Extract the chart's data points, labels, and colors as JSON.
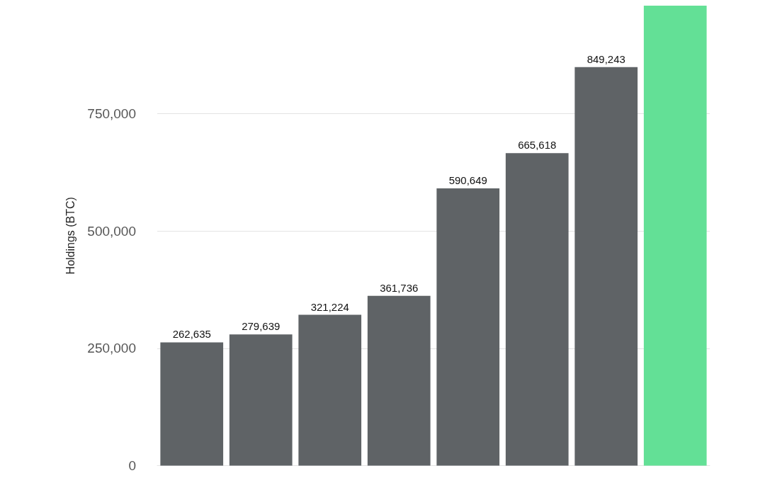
{
  "chart_data": {
    "type": "bar",
    "ylabel": "Holdings (BTC)",
    "categories": [
      null,
      null,
      null,
      null,
      null,
      null,
      null,
      null
    ],
    "values": [
      262635,
      279639,
      321224,
      361736,
      590649,
      665618,
      849243,
      980000
    ],
    "colors": [
      "#5f6366",
      "#5f6366",
      "#5f6366",
      "#5f6366",
      "#5f6366",
      "#5f6366",
      "#5f6366",
      "#63e096"
    ],
    "value_labels": [
      "262,635",
      "279,639",
      "321,224",
      "361,736",
      "590,649",
      "665,618",
      "849,243",
      null
    ],
    "ylim": [
      0,
      980000
    ],
    "yticks": [
      0,
      {
        "value": 250000,
        "label": "250,000"
      },
      {
        "value": 500000,
        "label": "500,000"
      },
      {
        "value": 750000,
        "label": "750,000"
      }
    ],
    "grid": "y"
  }
}
